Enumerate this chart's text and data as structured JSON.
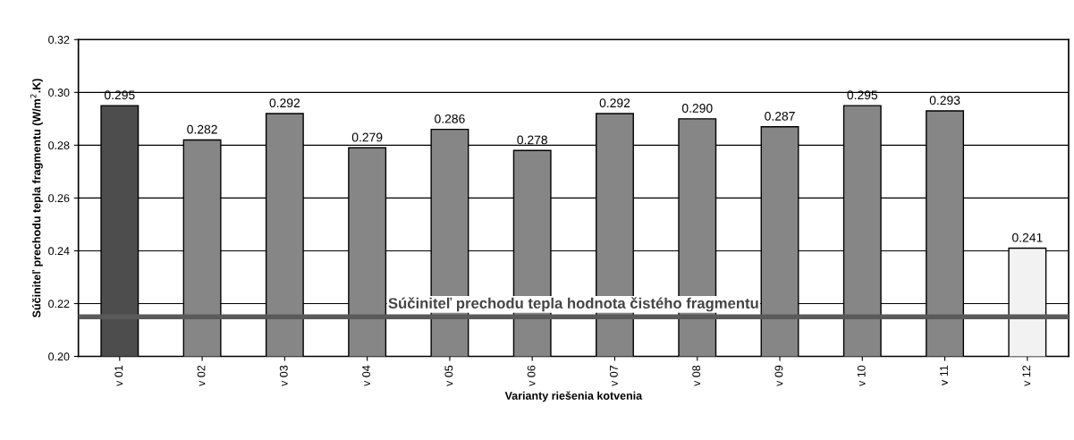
{
  "chart_data": {
    "type": "bar",
    "xlabel": "Varianty riešenia kotvenia",
    "ylabel": "Súčiniteľ prechodu tepla fragmentu (W/m$^{2}$.K)",
    "categories": [
      "v 01",
      "v 02",
      "v 03",
      "v 04",
      "v 05",
      "v 06",
      "v 07",
      "v 08",
      "v 09",
      "v 10",
      "v 11",
      "v 12"
    ],
    "values": [
      0.295,
      0.282,
      0.292,
      0.279,
      0.286,
      0.278,
      0.292,
      0.29,
      0.287,
      0.295,
      0.293,
      0.241
    ],
    "value_labels": [
      "0.295",
      "0.282",
      "0.292",
      "0.279",
      "0.286",
      "0.278",
      "0.292",
      "0.290",
      "0.287",
      "0.295",
      "0.293",
      "0.241"
    ],
    "colors": [
      "#4d4d4d",
      "#868686",
      "#868686",
      "#868686",
      "#868686",
      "#868686",
      "#868686",
      "#868686",
      "#868686",
      "#868686",
      "#868686",
      "#f2f2f2"
    ],
    "ylim": [
      0.2,
      0.32
    ],
    "yticks": [
      {
        "value": 0.2,
        "label": "0.20"
      },
      {
        "value": 0.22,
        "label": "0.22"
      },
      {
        "value": 0.24,
        "label": "0.24"
      },
      {
        "value": 0.26,
        "label": "0.26"
      },
      {
        "value": 0.28,
        "label": "0.28"
      },
      {
        "value": 0.3,
        "label": "0.30"
      },
      {
        "value": 0.32,
        "label": "0.32"
      }
    ],
    "grid": "y",
    "ref_lines": [
      {
        "axis": "y",
        "value": 0.215,
        "label": "Súčiniteľ prechodu tepla hodnota čistého fragmentu",
        "color": "#5a5a5a"
      }
    ]
  }
}
